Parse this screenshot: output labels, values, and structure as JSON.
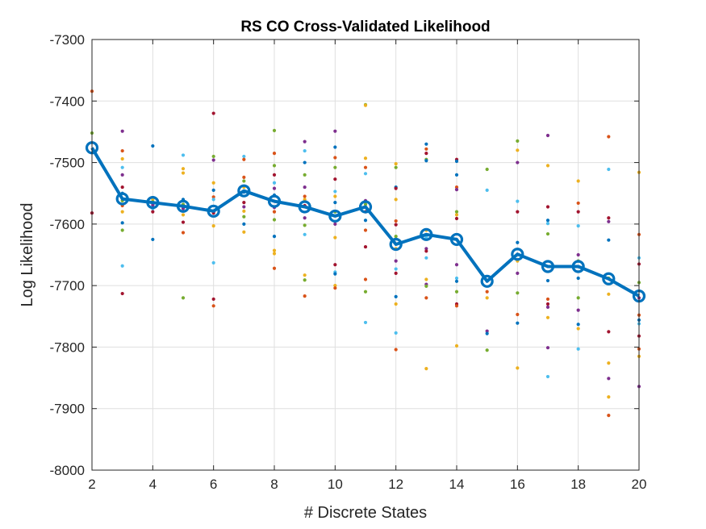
{
  "chart_data": {
    "type": "line",
    "title": "RS CO Cross-Validated Likelihood",
    "xlabel": "# Discrete States",
    "ylabel": "Log Likelihood",
    "xlim": [
      2,
      20
    ],
    "ylim": [
      -8000,
      -7300
    ],
    "xticks": [
      2,
      4,
      6,
      8,
      10,
      12,
      14,
      16,
      18,
      20
    ],
    "yticks": [
      -8000,
      -7900,
      -7800,
      -7700,
      -7600,
      -7500,
      -7400,
      -7300
    ],
    "grid": true,
    "mean_series": {
      "color": "#0072BD",
      "x": [
        2,
        3,
        4,
        5,
        6,
        7,
        8,
        9,
        10,
        11,
        12,
        13,
        14,
        15,
        16,
        17,
        18,
        19,
        20
      ],
      "y": [
        -7476,
        -7559,
        -7565,
        -7571,
        -7579,
        -7546,
        -7563,
        -7572,
        -7587,
        -7572,
        -7633,
        -7617,
        -7625,
        -7693,
        -7649,
        -7669,
        -7669,
        -7689,
        -7717
      ]
    },
    "fold_colors": [
      "#0072BD",
      "#D95319",
      "#EDB120",
      "#7E2F8E",
      "#77AC30",
      "#4DBEEE",
      "#A2142F"
    ],
    "fold_points": [
      [
        2,
        -7384,
        1
      ],
      [
        2,
        -7452,
        4
      ],
      [
        2,
        -7582,
        6
      ],
      [
        3,
        -7449,
        3
      ],
      [
        3,
        -7481,
        1
      ],
      [
        3,
        -7494,
        2
      ],
      [
        3,
        -7508,
        5
      ],
      [
        3,
        -7520,
        3
      ],
      [
        3,
        -7540,
        6
      ],
      [
        3,
        -7550,
        0
      ],
      [
        3,
        -7562,
        4
      ],
      [
        3,
        -7570,
        1
      ],
      [
        3,
        -7580,
        2
      ],
      [
        3,
        -7598,
        0
      ],
      [
        3,
        -7610,
        4
      ],
      [
        3,
        -7668,
        5
      ],
      [
        3,
        -7713,
        6
      ],
      [
        4,
        -7473,
        0
      ],
      [
        4,
        -7557,
        1
      ],
      [
        4,
        -7560,
        2
      ],
      [
        4,
        -7564,
        4
      ],
      [
        4,
        -7569,
        3
      ],
      [
        4,
        -7575,
        5
      ],
      [
        4,
        -7580,
        6
      ],
      [
        4,
        -7625,
        0
      ],
      [
        5,
        -7488,
        5
      ],
      [
        5,
        -7510,
        2
      ],
      [
        5,
        -7517,
        2
      ],
      [
        5,
        -7560,
        0
      ],
      [
        5,
        -7568,
        4
      ],
      [
        5,
        -7575,
        3
      ],
      [
        5,
        -7585,
        2
      ],
      [
        5,
        -7597,
        6
      ],
      [
        5,
        -7614,
        1
      ],
      [
        5,
        -7720,
        4
      ],
      [
        6,
        -7420,
        6
      ],
      [
        6,
        -7490,
        4
      ],
      [
        6,
        -7496,
        3
      ],
      [
        6,
        -7533,
        2
      ],
      [
        6,
        -7545,
        0
      ],
      [
        6,
        -7556,
        1
      ],
      [
        6,
        -7560,
        5
      ],
      [
        6,
        -7582,
        6
      ],
      [
        6,
        -7603,
        2
      ],
      [
        6,
        -7663,
        5
      ],
      [
        6,
        -7722,
        6
      ],
      [
        6,
        -7733,
        1
      ],
      [
        7,
        -7490,
        5
      ],
      [
        7,
        -7495,
        1
      ],
      [
        7,
        -7524,
        1
      ],
      [
        7,
        -7530,
        4
      ],
      [
        7,
        -7540,
        2
      ],
      [
        7,
        -7548,
        0
      ],
      [
        7,
        -7565,
        6
      ],
      [
        7,
        -7572,
        3
      ],
      [
        7,
        -7579,
        2
      ],
      [
        7,
        -7588,
        4
      ],
      [
        7,
        -7600,
        0
      ],
      [
        7,
        -7613,
        2
      ],
      [
        8,
        -7448,
        4
      ],
      [
        8,
        -7485,
        1
      ],
      [
        8,
        -7505,
        4
      ],
      [
        8,
        -7520,
        6
      ],
      [
        8,
        -7533,
        5
      ],
      [
        8,
        -7542,
        3
      ],
      [
        8,
        -7553,
        0
      ],
      [
        8,
        -7573,
        3
      ],
      [
        8,
        -7580,
        1
      ],
      [
        8,
        -7593,
        4
      ],
      [
        8,
        -7620,
        0
      ],
      [
        8,
        -7643,
        2
      ],
      [
        8,
        -7648,
        2
      ],
      [
        8,
        -7672,
        1
      ],
      [
        9,
        -7466,
        3
      ],
      [
        9,
        -7481,
        5
      ],
      [
        9,
        -7500,
        0
      ],
      [
        9,
        -7520,
        4
      ],
      [
        9,
        -7540,
        3
      ],
      [
        9,
        -7555,
        1
      ],
      [
        9,
        -7560,
        2
      ],
      [
        9,
        -7570,
        6
      ],
      [
        9,
        -7590,
        3
      ],
      [
        9,
        -7602,
        4
      ],
      [
        9,
        -7617,
        5
      ],
      [
        9,
        -7683,
        2
      ],
      [
        9,
        -7691,
        4
      ],
      [
        9,
        -7717,
        1
      ],
      [
        10,
        -7449,
        3
      ],
      [
        10,
        -7475,
        0
      ],
      [
        10,
        -7492,
        1
      ],
      [
        10,
        -7508,
        4
      ],
      [
        10,
        -7527,
        6
      ],
      [
        10,
        -7547,
        5
      ],
      [
        10,
        -7555,
        2
      ],
      [
        10,
        -7565,
        0
      ],
      [
        10,
        -7580,
        4
      ],
      [
        10,
        -7600,
        3
      ],
      [
        10,
        -7622,
        2
      ],
      [
        10,
        -7666,
        6
      ],
      [
        10,
        -7678,
        5
      ],
      [
        10,
        -7681,
        0
      ],
      [
        10,
        -7700,
        2
      ],
      [
        10,
        -7704,
        1
      ],
      [
        11,
        -7406,
        4
      ],
      [
        11,
        -7407,
        2
      ],
      [
        11,
        -7493,
        2
      ],
      [
        11,
        -7508,
        1
      ],
      [
        11,
        -7518,
        5
      ],
      [
        11,
        -7562,
        3
      ],
      [
        11,
        -7568,
        4
      ],
      [
        11,
        -7580,
        6
      ],
      [
        11,
        -7594,
        0
      ],
      [
        11,
        -7610,
        1
      ],
      [
        11,
        -7637,
        6
      ],
      [
        11,
        -7690,
        1
      ],
      [
        11,
        -7710,
        4
      ],
      [
        11,
        -7760,
        5
      ],
      [
        12,
        -7502,
        2
      ],
      [
        12,
        -7508,
        4
      ],
      [
        12,
        -7540,
        0
      ],
      [
        12,
        -7542,
        6
      ],
      [
        12,
        -7560,
        2
      ],
      [
        12,
        -7595,
        1
      ],
      [
        12,
        -7601,
        6
      ],
      [
        12,
        -7620,
        4
      ],
      [
        12,
        -7640,
        2
      ],
      [
        12,
        -7660,
        3
      ],
      [
        12,
        -7673,
        5
      ],
      [
        12,
        -7680,
        6
      ],
      [
        12,
        -7718,
        0
      ],
      [
        12,
        -7730,
        2
      ],
      [
        12,
        -7777,
        5
      ],
      [
        12,
        -7804,
        1
      ],
      [
        13,
        -7470,
        0
      ],
      [
        13,
        -7478,
        1
      ],
      [
        13,
        -7485,
        6
      ],
      [
        13,
        -7495,
        4
      ],
      [
        13,
        -7497,
        0
      ],
      [
        13,
        -7610,
        2
      ],
      [
        13,
        -7622,
        5
      ],
      [
        13,
        -7640,
        3
      ],
      [
        13,
        -7644,
        6
      ],
      [
        13,
        -7655,
        5
      ],
      [
        13,
        -7690,
        2
      ],
      [
        13,
        -7698,
        3
      ],
      [
        13,
        -7701,
        4
      ],
      [
        13,
        -7720,
        1
      ],
      [
        13,
        -7835,
        2
      ],
      [
        14,
        -7495,
        6
      ],
      [
        14,
        -7498,
        0
      ],
      [
        14,
        -7520,
        0
      ],
      [
        14,
        -7540,
        1
      ],
      [
        14,
        -7544,
        3
      ],
      [
        14,
        -7580,
        4
      ],
      [
        14,
        -7585,
        2
      ],
      [
        14,
        -7591,
        6
      ],
      [
        14,
        -7666,
        3
      ],
      [
        14,
        -7688,
        5
      ],
      [
        14,
        -7693,
        0
      ],
      [
        14,
        -7710,
        4
      ],
      [
        14,
        -7730,
        6
      ],
      [
        14,
        -7733,
        1
      ],
      [
        14,
        -7798,
        2
      ],
      [
        15,
        -7511,
        4
      ],
      [
        15,
        -7545,
        5
      ],
      [
        15,
        -7710,
        1
      ],
      [
        15,
        -7720,
        2
      ],
      [
        15,
        -7774,
        3
      ],
      [
        15,
        -7778,
        0
      ],
      [
        15,
        -7805,
        4
      ],
      [
        16,
        -7465,
        4
      ],
      [
        16,
        -7480,
        2
      ],
      [
        16,
        -7500,
        3
      ],
      [
        16,
        -7563,
        5
      ],
      [
        16,
        -7580,
        6
      ],
      [
        16,
        -7630,
        0
      ],
      [
        16,
        -7660,
        2
      ],
      [
        16,
        -7680,
        3
      ],
      [
        16,
        -7712,
        4
      ],
      [
        16,
        -7747,
        1
      ],
      [
        16,
        -7761,
        0
      ],
      [
        16,
        -7834,
        2
      ],
      [
        17,
        -7456,
        3
      ],
      [
        17,
        -7505,
        2
      ],
      [
        17,
        -7572,
        6
      ],
      [
        17,
        -7594,
        0
      ],
      [
        17,
        -7599,
        5
      ],
      [
        17,
        -7616,
        4
      ],
      [
        17,
        -7692,
        0
      ],
      [
        17,
        -7722,
        1
      ],
      [
        17,
        -7730,
        6
      ],
      [
        17,
        -7735,
        3
      ],
      [
        17,
        -7752,
        2
      ],
      [
        17,
        -7801,
        3
      ],
      [
        17,
        -7848,
        5
      ],
      [
        18,
        -7530,
        2
      ],
      [
        18,
        -7566,
        1
      ],
      [
        18,
        -7580,
        6
      ],
      [
        18,
        -7603,
        5
      ],
      [
        18,
        -7650,
        3
      ],
      [
        18,
        -7660,
        4
      ],
      [
        18,
        -7688,
        0
      ],
      [
        18,
        -7720,
        4
      ],
      [
        18,
        -7740,
        3
      ],
      [
        18,
        -7763,
        0
      ],
      [
        18,
        -7770,
        2
      ],
      [
        18,
        -7803,
        5
      ],
      [
        19,
        -7458,
        1
      ],
      [
        19,
        -7511,
        5
      ],
      [
        19,
        -7590,
        6
      ],
      [
        19,
        -7596,
        3
      ],
      [
        19,
        -7626,
        0
      ],
      [
        19,
        -7688,
        4
      ],
      [
        19,
        -7714,
        2
      ],
      [
        19,
        -7775,
        6
      ],
      [
        19,
        -7826,
        2
      ],
      [
        19,
        -7851,
        3
      ],
      [
        19,
        -7881,
        2
      ],
      [
        19,
        -7911,
        1
      ],
      [
        20,
        -7516,
        2
      ],
      [
        20,
        -7617,
        1
      ],
      [
        20,
        -7655,
        5
      ],
      [
        20,
        -7665,
        6
      ],
      [
        20,
        -7695,
        4
      ],
      [
        20,
        -7720,
        3
      ],
      [
        20,
        -7748,
        1
      ],
      [
        20,
        -7756,
        0
      ],
      [
        20,
        -7762,
        5
      ],
      [
        20,
        -7782,
        6
      ],
      [
        20,
        -7803,
        1
      ],
      [
        20,
        -7815,
        2
      ],
      [
        20,
        -7864,
        3
      ]
    ]
  }
}
